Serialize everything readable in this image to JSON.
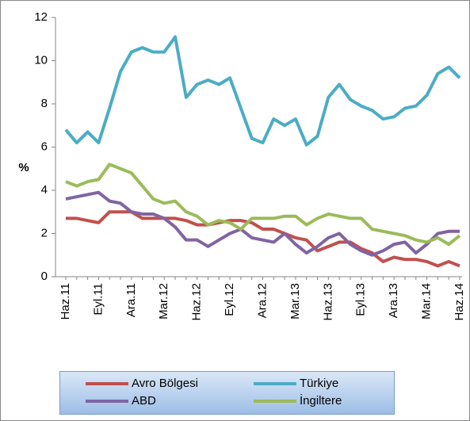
{
  "chart_data": {
    "type": "line",
    "y_label": "%",
    "categories": [
      "Haz.11",
      null,
      null,
      "Eyl.11",
      null,
      null,
      "Ara.11",
      null,
      null,
      "Mar.12",
      null,
      null,
      "Haz.12",
      null,
      null,
      "Eyl.12",
      null,
      null,
      "Ara.12",
      null,
      null,
      "Mar.13",
      null,
      null,
      "Haz.13",
      null,
      null,
      "Eyl.13",
      null,
      null,
      "Ara.13",
      null,
      null,
      "Mar.14",
      null,
      null,
      "Haz.14"
    ],
    "series": [
      {
        "name": "Avro Bölgesi",
        "color": "#c0504d",
        "values": [
          2.7,
          2.7,
          2.6,
          2.5,
          3.0,
          3.0,
          3.0,
          2.7,
          2.7,
          2.7,
          2.7,
          2.6,
          2.4,
          2.4,
          2.5,
          2.6,
          2.6,
          2.5,
          2.2,
          2.2,
          2.0,
          1.8,
          1.7,
          1.2,
          1.4,
          1.6,
          1.6,
          1.3,
          1.1,
          0.7,
          0.9,
          0.8,
          0.8,
          0.7,
          0.5,
          0.7,
          0.5
        ]
      },
      {
        "name": "Türkiye",
        "color": "#4bacc6",
        "values": [
          6.8,
          6.2,
          6.7,
          6.2,
          7.8,
          9.5,
          10.4,
          10.6,
          10.4,
          10.4,
          11.1,
          8.3,
          8.9,
          9.1,
          8.9,
          9.2,
          7.8,
          6.4,
          6.2,
          7.3,
          7.0,
          7.3,
          6.1,
          6.5,
          8.3,
          8.9,
          8.2,
          7.9,
          7.7,
          7.3,
          7.4,
          7.8,
          7.9,
          8.4,
          9.4,
          9.7,
          9.2
        ]
      },
      {
        "name": "ABD",
        "color": "#8064a2",
        "values": [
          3.6,
          3.7,
          3.8,
          3.9,
          3.5,
          3.4,
          3.0,
          2.9,
          2.9,
          2.7,
          2.3,
          1.7,
          1.7,
          1.4,
          1.7,
          2.0,
          2.2,
          1.8,
          1.7,
          1.6,
          2.0,
          1.5,
          1.1,
          1.4,
          1.8,
          2.0,
          1.5,
          1.2,
          1.0,
          1.2,
          1.5,
          1.6,
          1.1,
          1.5,
          2.0,
          2.1,
          2.1
        ]
      },
      {
        "name": "İngiltere",
        "color": "#9bbb59",
        "values": [
          4.4,
          4.2,
          4.4,
          4.5,
          5.2,
          5.0,
          4.8,
          4.2,
          3.6,
          3.4,
          3.5,
          3.0,
          2.8,
          2.4,
          2.6,
          2.5,
          2.2,
          2.7,
          2.7,
          2.7,
          2.8,
          2.8,
          2.4,
          2.7,
          2.9,
          2.8,
          2.7,
          2.7,
          2.2,
          2.1,
          2.0,
          1.9,
          1.7,
          1.6,
          1.8,
          1.5,
          1.9
        ]
      }
    ],
    "ylim": [
      0,
      12
    ],
    "yticks": [
      0,
      2,
      4,
      6,
      8,
      10,
      12
    ]
  }
}
